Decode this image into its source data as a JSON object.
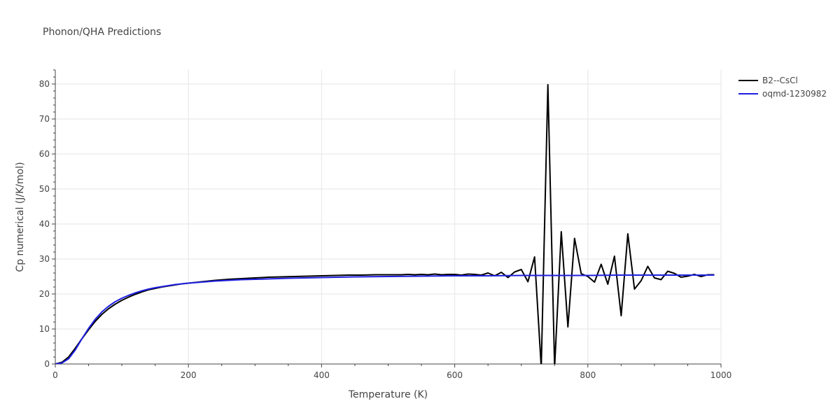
{
  "chart_data": {
    "type": "line",
    "title": "Phonon/QHA Predictions",
    "xlabel": "Temperature (K)",
    "ylabel": "Cp numerical (J/K/mol)",
    "xlim": [
      0,
      1000
    ],
    "ylim": [
      0,
      84
    ],
    "xticks": [
      0,
      200,
      400,
      600,
      800,
      1000
    ],
    "yticks": [
      0,
      10,
      20,
      30,
      40,
      50,
      60,
      70,
      80
    ],
    "grid": true,
    "legend_position": "top-right",
    "series": [
      {
        "name": "B2--CsCl",
        "color": "#000000",
        "x": [
          0,
          10,
          20,
          30,
          40,
          50,
          60,
          70,
          80,
          90,
          100,
          110,
          120,
          130,
          140,
          150,
          160,
          170,
          180,
          190,
          200,
          220,
          240,
          260,
          280,
          300,
          320,
          340,
          360,
          380,
          400,
          420,
          440,
          460,
          480,
          500,
          520,
          530,
          540,
          550,
          560,
          570,
          580,
          590,
          600,
          610,
          620,
          630,
          640,
          650,
          660,
          670,
          680,
          690,
          700,
          710,
          720,
          730,
          740,
          750,
          760,
          770,
          780,
          790,
          800,
          810,
          820,
          830,
          840,
          850,
          860,
          870,
          880,
          890,
          900,
          910,
          920,
          930,
          940,
          950,
          960,
          970,
          980,
          990
        ],
        "values": [
          0,
          0.5,
          2,
          4.5,
          7.2,
          9.8,
          12.2,
          14.2,
          15.8,
          17.1,
          18.2,
          19.1,
          19.9,
          20.6,
          21.2,
          21.6,
          22,
          22.3,
          22.6,
          22.9,
          23.1,
          23.5,
          23.9,
          24.2,
          24.4,
          24.6,
          24.8,
          24.9,
          25,
          25.1,
          25.2,
          25.3,
          25.4,
          25.4,
          25.5,
          25.5,
          25.5,
          25.6,
          25.5,
          25.6,
          25.5,
          25.7,
          25.5,
          25.6,
          25.6,
          25.4,
          25.7,
          25.6,
          25.4,
          26,
          25.2,
          26.2,
          24.7,
          26.3,
          27,
          23.5,
          30.6,
          -1,
          79.8,
          -1,
          37.8,
          10.6,
          35.9,
          25.8,
          25,
          23.4,
          28.5,
          22.8,
          30.8,
          13.8,
          37.2,
          21.4,
          23.8,
          27.9,
          24.6,
          24.1,
          26.5,
          25.9,
          24.8,
          25.1,
          25.6,
          25,
          25.5,
          25.5
        ]
      },
      {
        "name": "oqmd-1230982",
        "color": "#1f1fe0",
        "x": [
          0,
          10,
          20,
          30,
          40,
          50,
          60,
          70,
          80,
          90,
          100,
          110,
          120,
          130,
          140,
          150,
          160,
          170,
          180,
          190,
          200,
          220,
          240,
          260,
          280,
          300,
          350,
          400,
          450,
          500,
          550,
          600,
          650,
          700,
          750,
          800,
          850,
          900,
          950,
          990
        ],
        "values": [
          0,
          0.3,
          1.5,
          4,
          7.2,
          10.2,
          12.8,
          14.9,
          16.5,
          17.8,
          18.8,
          19.6,
          20.3,
          20.9,
          21.4,
          21.8,
          22.1,
          22.4,
          22.7,
          22.9,
          23.1,
          23.4,
          23.7,
          23.9,
          24.1,
          24.2,
          24.5,
          24.7,
          24.9,
          25,
          25.1,
          25.2,
          25.2,
          25.3,
          25.3,
          25.3,
          25.4,
          25.4,
          25.4,
          25.4
        ]
      }
    ]
  }
}
